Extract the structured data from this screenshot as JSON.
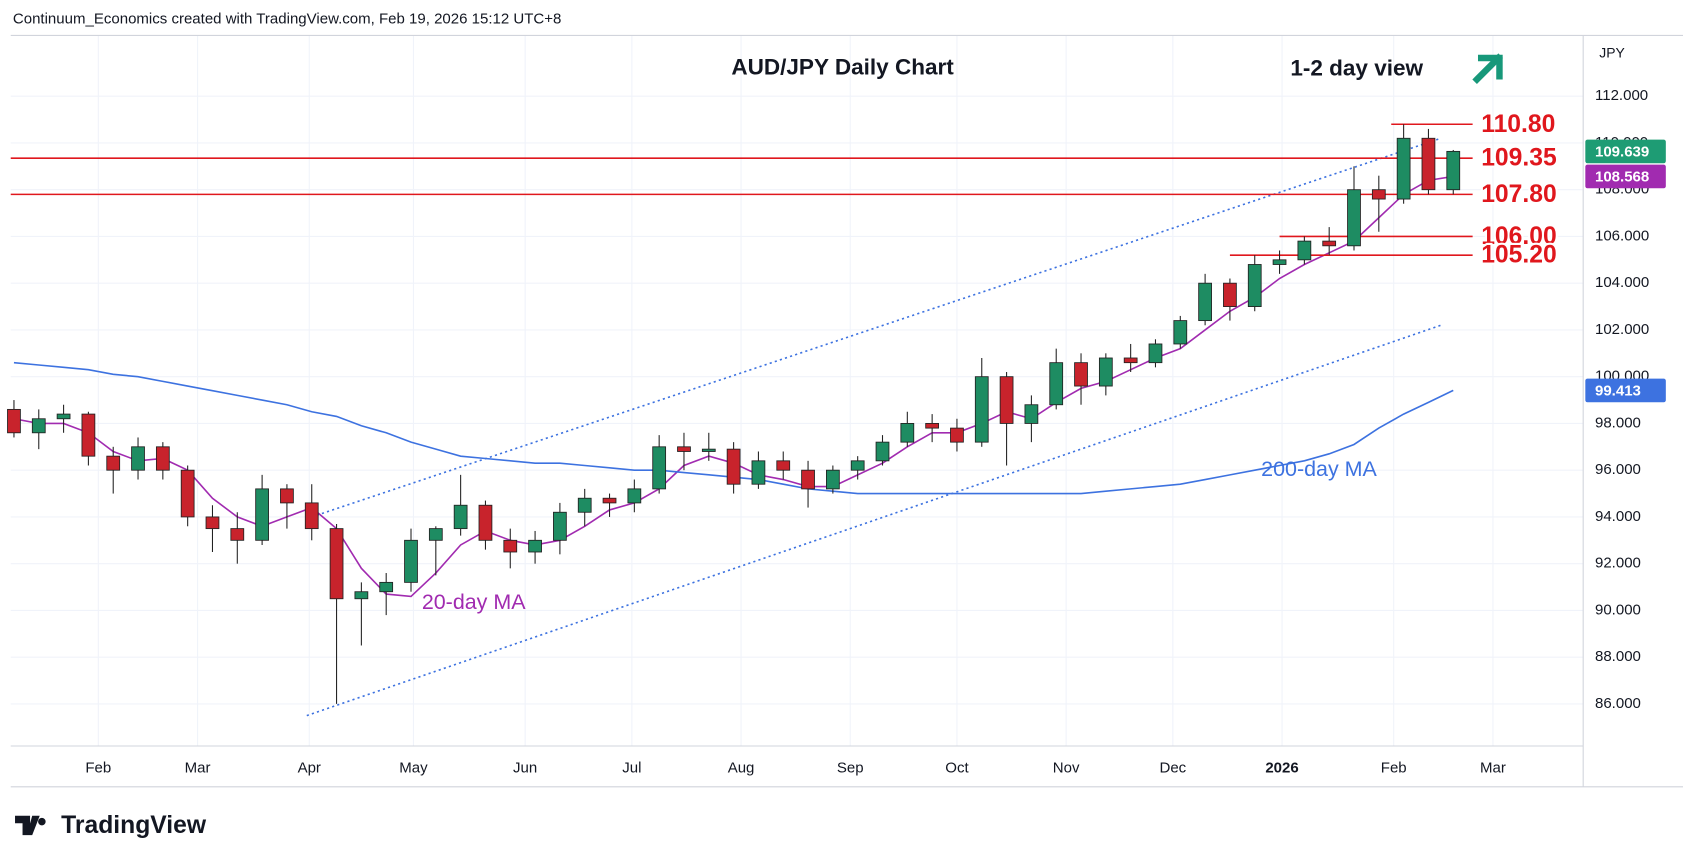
{
  "header": "Continuum_Economics created with TradingView.com, Feb 19, 2026 15:12 UTC+8",
  "footer_logo": "TradingView",
  "chart_data": {
    "type": "candlestick",
    "title": "AUD/JPY Daily Chart",
    "view_note": "1-2 day view",
    "y_unit": "JPY",
    "ylim": [
      84.2,
      114.6
    ],
    "yticks": [
      {
        "value": 86,
        "label": "86.000"
      },
      {
        "value": 88,
        "label": "88.000"
      },
      {
        "value": 90,
        "label": "90.000"
      },
      {
        "value": 92,
        "label": "92.000"
      },
      {
        "value": 94,
        "label": "94.000"
      },
      {
        "value": 96,
        "label": "96.000"
      },
      {
        "value": 98,
        "label": "98.000"
      },
      {
        "value": 100,
        "label": "100.000"
      },
      {
        "value": 102,
        "label": "102.000"
      },
      {
        "value": 104,
        "label": "104.000"
      },
      {
        "value": 106,
        "label": "106.000"
      },
      {
        "value": 108,
        "label": "108.000"
      },
      {
        "value": 110,
        "label": "110.000"
      },
      {
        "value": 112,
        "label": "112.000"
      }
    ],
    "xticks": [
      {
        "value": 3.4,
        "label": "Feb"
      },
      {
        "value": 7.4,
        "label": "Mar"
      },
      {
        "value": 11.9,
        "label": "Apr"
      },
      {
        "value": 16.1,
        "label": "May"
      },
      {
        "value": 20.6,
        "label": "Jun"
      },
      {
        "value": 24.9,
        "label": "Jul"
      },
      {
        "value": 29.3,
        "label": "Aug"
      },
      {
        "value": 33.7,
        "label": "Sep"
      },
      {
        "value": 38.0,
        "label": "Oct"
      },
      {
        "value": 42.4,
        "label": "Nov"
      },
      {
        "value": 46.7,
        "label": "Dec"
      },
      {
        "value": 51.1,
        "label": "2026"
      },
      {
        "value": 55.6,
        "label": "Feb"
      },
      {
        "value": 59.6,
        "label": "Mar"
      }
    ],
    "grid": true,
    "up_color": "#1e8c62",
    "down_color": "#c8232c",
    "candles": {
      "open": [
        98.6,
        97.6,
        98.2,
        98.4,
        96.6,
        96.0,
        97.0,
        96.0,
        94.0,
        93.5,
        93.0,
        95.2,
        94.6,
        93.5,
        90.5,
        90.8,
        91.2,
        93.0,
        93.5,
        94.5,
        93.0,
        92.5,
        93.0,
        94.2,
        94.8,
        94.6,
        95.2,
        97.0,
        96.8,
        96.9,
        95.4,
        96.4,
        96.0,
        95.2,
        96.0,
        96.4,
        97.2,
        98.0,
        97.8,
        97.2,
        100.0,
        98.0,
        98.8,
        100.6,
        99.6,
        100.8,
        100.6,
        101.4,
        102.4,
        104.0,
        103.0,
        104.8,
        105.0,
        105.8,
        105.6,
        108.0,
        107.6,
        110.2,
        108.0
      ],
      "high": [
        99.0,
        98.6,
        98.8,
        98.5,
        97.0,
        97.4,
        97.2,
        96.2,
        94.5,
        94.2,
        95.8,
        95.4,
        95.4,
        93.7,
        91.2,
        91.6,
        93.5,
        93.6,
        95.8,
        94.7,
        93.5,
        93.4,
        94.6,
        95.2,
        95.0,
        95.6,
        97.5,
        97.6,
        97.6,
        97.2,
        96.8,
        96.8,
        96.4,
        96.2,
        96.6,
        97.5,
        98.5,
        98.4,
        98.2,
        100.8,
        100.2,
        99.2,
        101.2,
        101.0,
        101.0,
        101.4,
        101.6,
        102.6,
        104.4,
        104.2,
        105.2,
        105.4,
        106.0,
        106.4,
        109.0,
        108.6,
        110.8,
        110.6,
        109.7
      ],
      "low": [
        97.4,
        96.9,
        97.6,
        96.2,
        95.0,
        95.6,
        95.6,
        93.6,
        92.5,
        92.0,
        92.8,
        93.5,
        93.0,
        86.0,
        88.5,
        89.8,
        90.8,
        91.5,
        93.2,
        92.6,
        91.8,
        92.0,
        92.4,
        93.6,
        94.0,
        94.2,
        95.0,
        96.0,
        96.4,
        95.0,
        95.2,
        95.6,
        94.4,
        95.0,
        95.6,
        96.2,
        97.0,
        97.2,
        96.8,
        97.0,
        96.2,
        97.2,
        98.6,
        98.8,
        99.2,
        100.2,
        100.4,
        101.2,
        102.2,
        102.4,
        102.8,
        104.4,
        104.8,
        105.2,
        105.4,
        106.2,
        107.4,
        107.8,
        107.8
      ],
      "close": [
        97.6,
        98.2,
        98.4,
        96.6,
        96.0,
        97.0,
        96.0,
        94.0,
        93.5,
        93.0,
        95.2,
        94.6,
        93.5,
        90.5,
        90.8,
        91.2,
        93.0,
        93.5,
        94.5,
        93.0,
        92.5,
        93.0,
        94.2,
        94.8,
        94.6,
        95.2,
        97.0,
        96.8,
        96.9,
        95.4,
        96.4,
        96.0,
        95.2,
        96.0,
        96.4,
        97.2,
        98.0,
        97.8,
        97.2,
        100.0,
        98.0,
        98.8,
        100.6,
        99.6,
        100.8,
        100.6,
        101.4,
        102.4,
        104.0,
        103.0,
        104.8,
        105.0,
        105.8,
        105.6,
        108.0,
        107.6,
        110.2,
        108.0,
        109.639
      ]
    },
    "moving_averages": [
      {
        "name": "20-day MA",
        "color": "#a12bb0",
        "values": [
          98.2,
          98.0,
          98.0,
          97.6,
          96.8,
          96.4,
          96.5,
          96.0,
          94.8,
          94.0,
          93.6,
          94.0,
          94.4,
          93.5,
          91.8,
          90.7,
          90.6,
          91.6,
          92.8,
          93.4,
          93.0,
          92.8,
          93.0,
          93.6,
          94.3,
          94.6,
          95.2,
          96.2,
          96.6,
          96.3,
          95.8,
          95.6,
          95.3,
          95.3,
          95.8,
          96.3,
          97.0,
          97.6,
          97.6,
          98.0,
          98.5,
          98.2,
          98.9,
          99.5,
          99.8,
          100.3,
          100.8,
          101.2,
          102.0,
          102.8,
          103.4,
          104.2,
          104.8,
          105.3,
          105.8,
          106.8,
          107.8,
          108.4,
          108.568
        ]
      },
      {
        "name": "200-day MA",
        "color": "#3d72e0",
        "values": [
          100.6,
          100.5,
          100.4,
          100.3,
          100.1,
          100.0,
          99.8,
          99.6,
          99.4,
          99.2,
          99.0,
          98.8,
          98.5,
          98.3,
          97.9,
          97.6,
          97.2,
          96.9,
          96.6,
          96.5,
          96.4,
          96.3,
          96.3,
          96.2,
          96.1,
          96.0,
          96.0,
          95.9,
          95.8,
          95.7,
          95.6,
          95.4,
          95.2,
          95.1,
          95.0,
          95.0,
          95.0,
          95.0,
          95.0,
          95.0,
          95.0,
          95.0,
          95.0,
          95.0,
          95.1,
          95.2,
          95.3,
          95.4,
          95.6,
          95.8,
          96.0,
          96.2,
          96.4,
          96.7,
          97.1,
          97.8,
          98.4,
          98.9,
          99.413
        ]
      }
    ],
    "trendlines": [
      {
        "color": "#3d72e0",
        "x": [
          12.0,
          57.5
        ],
        "y": [
          94.0,
          110.2
        ]
      },
      {
        "color": "#3d72e0",
        "x": [
          11.8,
          57.5
        ],
        "y": [
          85.5,
          102.2
        ]
      }
    ],
    "levels": [
      {
        "value": 110.8,
        "label": "110.80",
        "start": 55.5,
        "color": "#e0171d"
      },
      {
        "value": 109.35,
        "label": "109.35",
        "start": -0.5,
        "color": "#e0171d"
      },
      {
        "value": 107.8,
        "label": "107.80",
        "start": -0.5,
        "color": "#e0171d"
      },
      {
        "value": 106.0,
        "label": "106.00",
        "start": 51.0,
        "color": "#e0171d"
      },
      {
        "value": 105.2,
        "label": "105.20",
        "start": 49.0,
        "color": "#e0171d"
      }
    ],
    "price_tags": [
      {
        "value": 109.639,
        "label": "109.639",
        "color": "#1e9c74"
      },
      {
        "value": 108.568,
        "label": "108.568",
        "color": "#a12bb0"
      },
      {
        "value": 99.413,
        "label": "99.413",
        "color": "#3d72e0"
      }
    ]
  }
}
